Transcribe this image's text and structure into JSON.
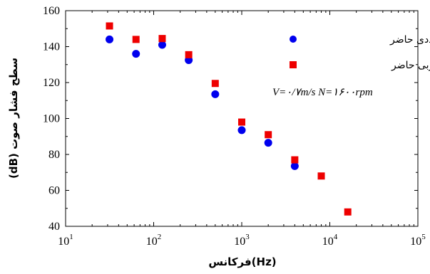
{
  "chart_data": {
    "type": "scatter",
    "x_scale": "log",
    "xlim": [
      10,
      100000
    ],
    "ylim": [
      40,
      160
    ],
    "x_ticks": [
      {
        "base": "10",
        "exp": "1"
      },
      {
        "base": "10",
        "exp": "2"
      },
      {
        "base": "10",
        "exp": "3"
      },
      {
        "base": "10",
        "exp": "4"
      },
      {
        "base": "10",
        "exp": "5"
      }
    ],
    "y_ticks": [
      "40",
      "60",
      "80",
      "100",
      "120",
      "140",
      "160"
    ],
    "xlabel": "فرکانس(Hz)",
    "ylabel": "سطح فشار صوت (dB)",
    "annotation": "V=۰/۷m/s   N=۱۶۰۰rpm",
    "legend_position": "top-right",
    "series": [
      {
        "name": "پژوهش عددی حاضر",
        "marker": "circle",
        "color": "#0000ee",
        "points": [
          [
            31.5,
            144
          ],
          [
            63,
            136
          ],
          [
            125,
            141
          ],
          [
            250,
            132.5
          ],
          [
            500,
            113.5
          ],
          [
            1000,
            93.5
          ],
          [
            2000,
            86.5
          ],
          [
            4000,
            73.5
          ]
        ]
      },
      {
        "name": "پژوهش تجربی حاضر",
        "marker": "square",
        "color": "#ee0000",
        "points": [
          [
            31.5,
            151.5
          ],
          [
            63,
            144
          ],
          [
            125,
            144.5
          ],
          [
            250,
            135.5
          ],
          [
            500,
            119.5
          ],
          [
            1000,
            98
          ],
          [
            2000,
            91
          ],
          [
            4000,
            77
          ],
          [
            8000,
            68
          ],
          [
            16000,
            48
          ]
        ]
      }
    ]
  }
}
